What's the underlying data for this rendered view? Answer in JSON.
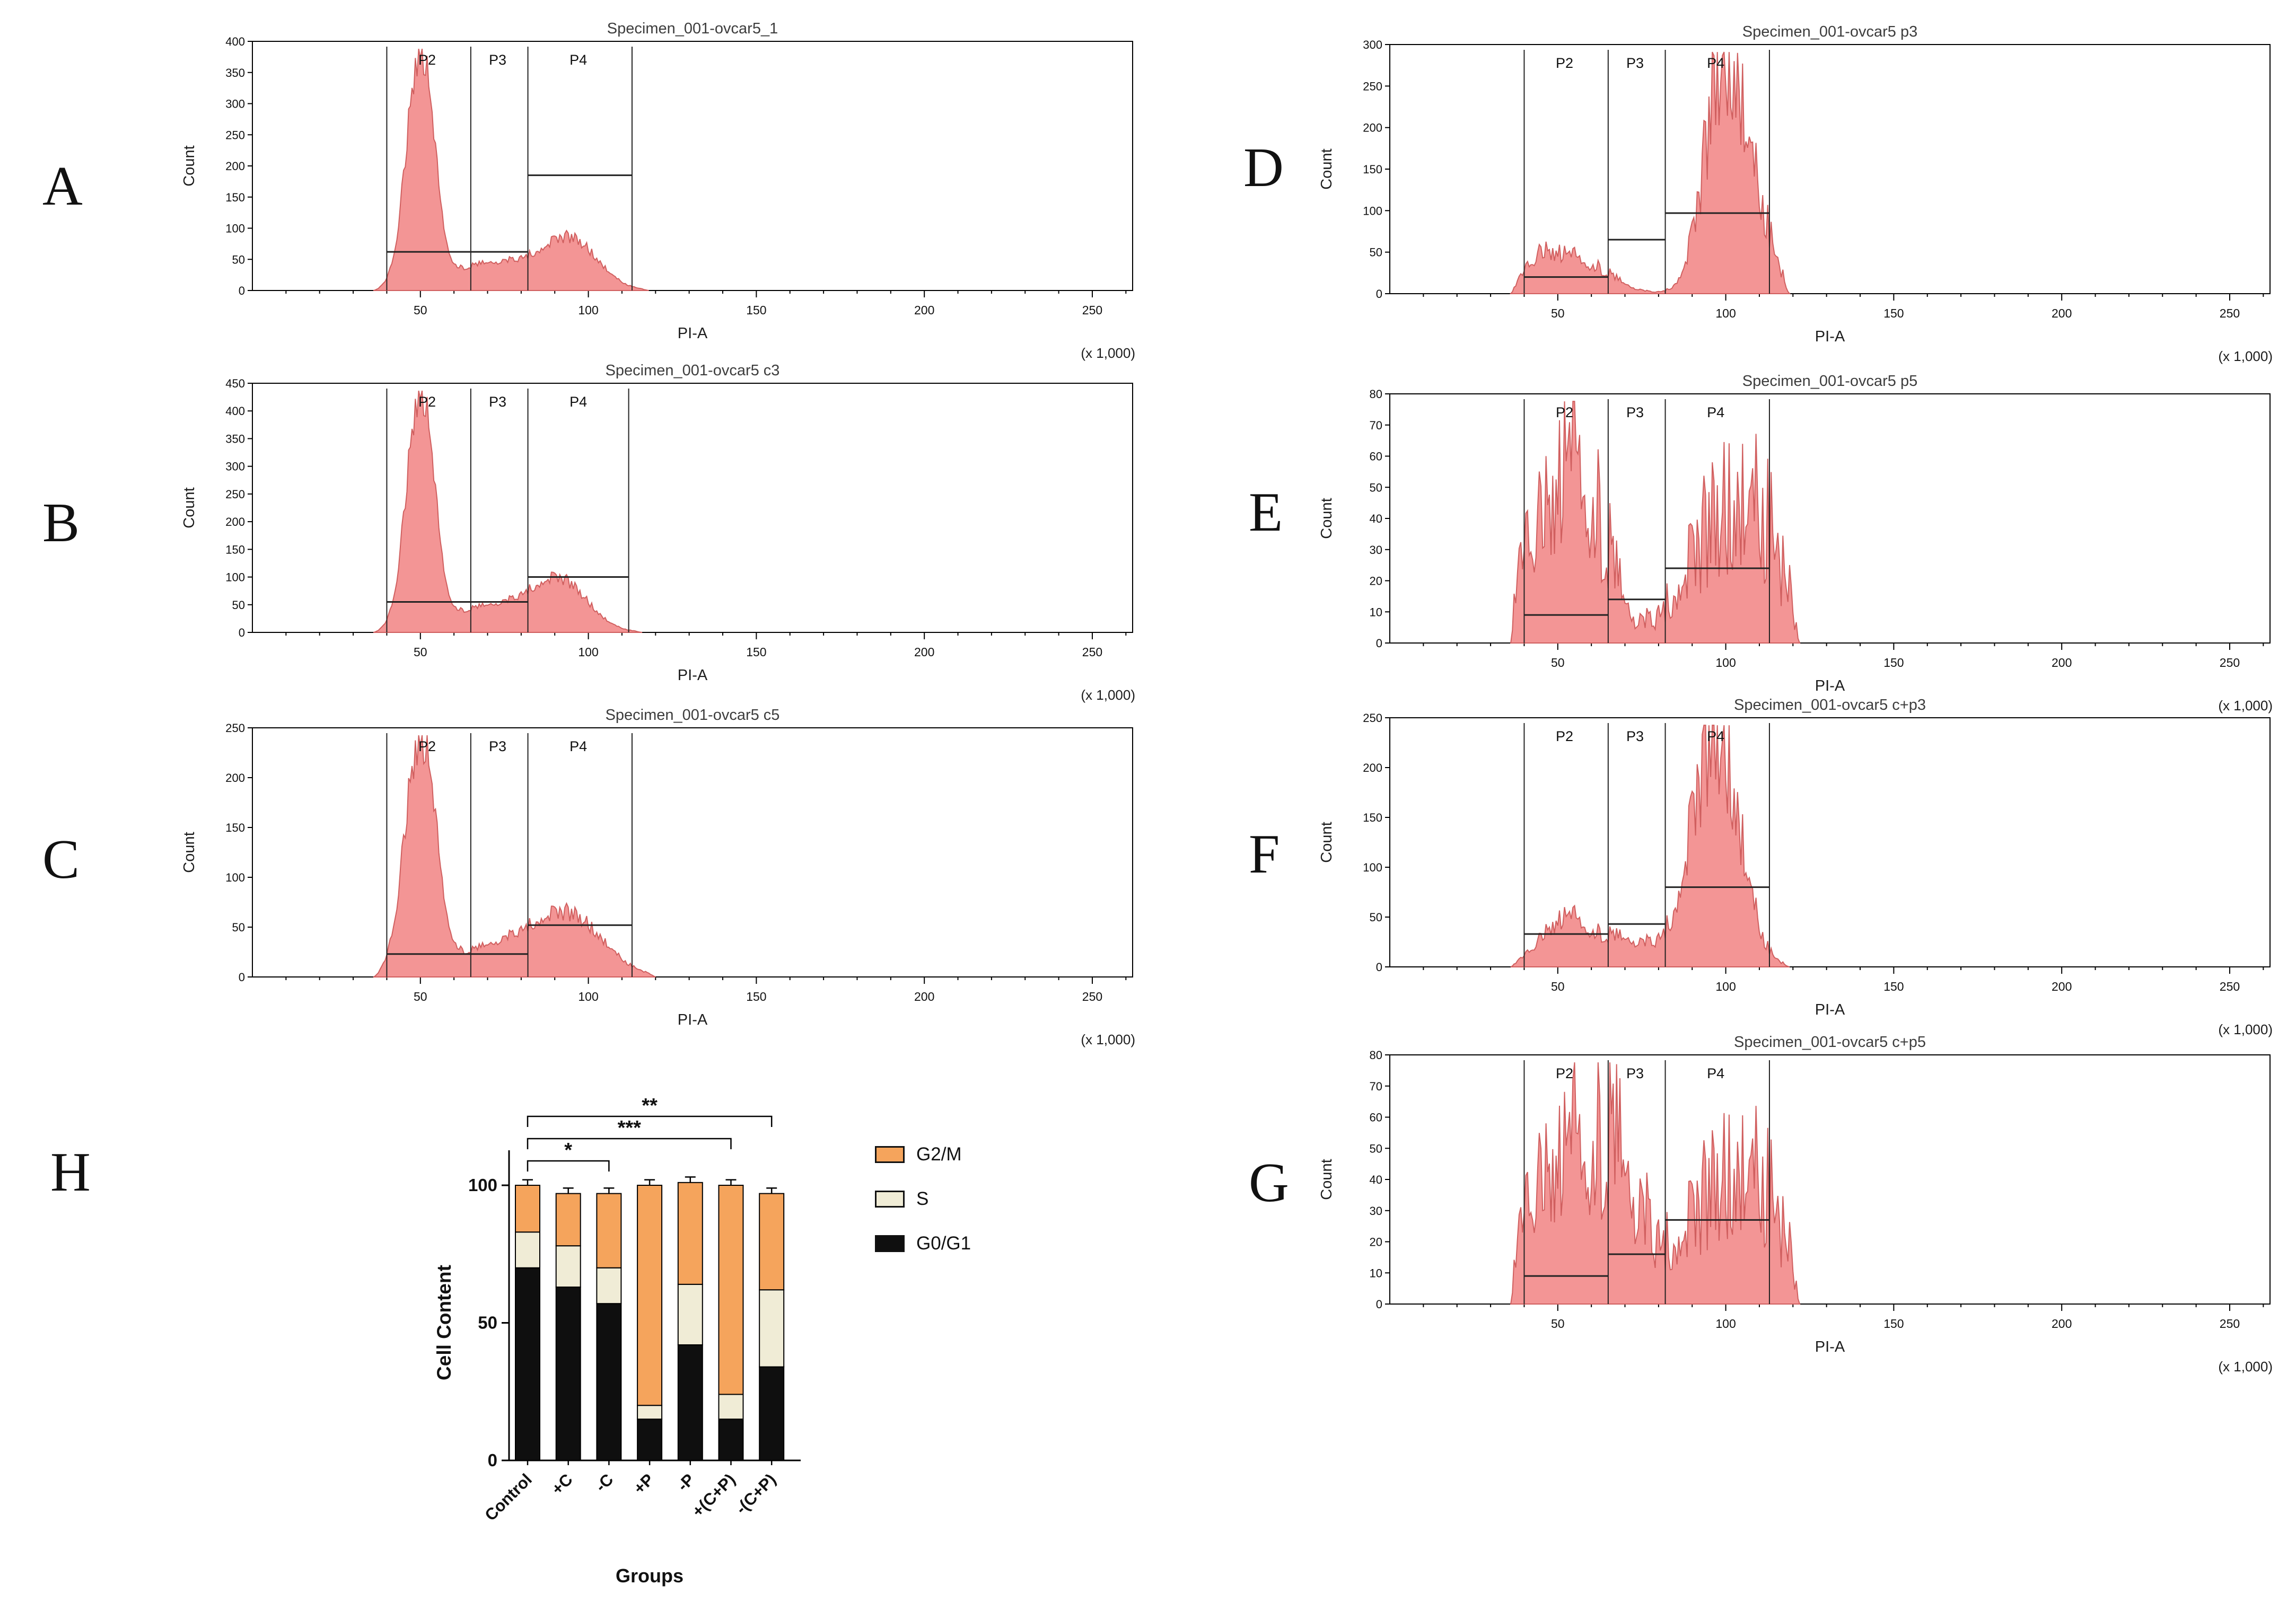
{
  "chart_data": [
    {
      "type": "histogram",
      "panel": "A",
      "title": "Specimen_001-ovcar5_1",
      "xlabel": "PI-A",
      "ylabel": "Count",
      "x_scale_note": "(x 1,000)",
      "xlim": [
        0,
        262
      ],
      "xticks": [
        50,
        100,
        150,
        200,
        250
      ],
      "ylim": [
        0,
        400
      ],
      "yticks": [
        0,
        50,
        100,
        150,
        200,
        250,
        300,
        350,
        400
      ],
      "fill": "#f28d8d",
      "stroke": "#d05f5f",
      "noise": 0.12,
      "range": [
        36,
        118
      ],
      "components": [
        {
          "center": 50,
          "sigma": 4,
          "amp": 380
        },
        {
          "center": 73,
          "sigma": 14,
          "amp": 46
        },
        {
          "center": 95,
          "sigma": 8,
          "amp": 72
        }
      ],
      "gates": {
        "verticals": [
          40,
          65,
          82,
          113
        ],
        "labels": [
          {
            "text": "P2",
            "x": 52
          },
          {
            "text": "P3",
            "x": 73
          },
          {
            "text": "P4",
            "x": 97
          }
        ],
        "hlines": [
          {
            "x1": 40,
            "x2": 82,
            "y": 62
          },
          {
            "x1": 82,
            "x2": 113,
            "y": 185
          }
        ]
      }
    },
    {
      "type": "histogram",
      "panel": "B",
      "title": "Specimen_001-ovcar5 c3",
      "xlabel": "PI-A",
      "ylabel": "Count",
      "x_scale_note": "(x 1,000)",
      "xlim": [
        0,
        262
      ],
      "xticks": [
        50,
        100,
        150,
        200,
        250
      ],
      "ylim": [
        0,
        450
      ],
      "yticks": [
        0,
        50,
        100,
        150,
        200,
        250,
        300,
        350,
        400,
        450
      ],
      "fill": "#f28d8d",
      "stroke": "#d05f5f",
      "noise": 0.12,
      "range": [
        36,
        116
      ],
      "components": [
        {
          "center": 50,
          "sigma": 4,
          "amp": 430
        },
        {
          "center": 73,
          "sigma": 14,
          "amp": 50
        },
        {
          "center": 92,
          "sigma": 8,
          "amp": 78
        }
      ],
      "gates": {
        "verticals": [
          40,
          65,
          82,
          112
        ],
        "labels": [
          {
            "text": "P2",
            "x": 52
          },
          {
            "text": "P3",
            "x": 73
          },
          {
            "text": "P4",
            "x": 97
          }
        ],
        "hlines": [
          {
            "x1": 40,
            "x2": 82,
            "y": 55
          },
          {
            "x1": 82,
            "x2": 112,
            "y": 100
          }
        ]
      }
    },
    {
      "type": "histogram",
      "panel": "C",
      "title": "Specimen_001-ovcar5 c5",
      "xlabel": "PI-A",
      "ylabel": "Count",
      "x_scale_note": "(x 1,000)",
      "xlim": [
        0,
        262
      ],
      "xticks": [
        50,
        100,
        150,
        200,
        250
      ],
      "ylim": [
        0,
        250
      ],
      "yticks": [
        0,
        50,
        100,
        150,
        200,
        250
      ],
      "fill": "#f28d8d",
      "stroke": "#d05f5f",
      "noise": 0.14,
      "range": [
        36,
        120
      ],
      "components": [
        {
          "center": 50,
          "sigma": 4.5,
          "amp": 238
        },
        {
          "center": 75,
          "sigma": 14,
          "amp": 33
        },
        {
          "center": 95,
          "sigma": 10,
          "amp": 52
        }
      ],
      "gates": {
        "verticals": [
          40,
          65,
          82,
          113
        ],
        "labels": [
          {
            "text": "P2",
            "x": 52
          },
          {
            "text": "P3",
            "x": 73
          },
          {
            "text": "P4",
            "x": 97
          }
        ],
        "hlines": [
          {
            "x1": 40,
            "x2": 82,
            "y": 23
          },
          {
            "x1": 82,
            "x2": 113,
            "y": 52
          }
        ]
      }
    },
    {
      "type": "histogram",
      "panel": "D",
      "title": "Specimen_001-ovcar5 p3",
      "xlabel": "PI-A",
      "ylabel": "Count",
      "x_scale_note": "(x 1,000)",
      "xlim": [
        0,
        262
      ],
      "xticks": [
        50,
        100,
        150,
        200,
        250
      ],
      "ylim": [
        0,
        300
      ],
      "yticks": [
        0,
        50,
        100,
        150,
        200,
        250,
        300
      ],
      "fill": "#f28d8d",
      "stroke": "#d05f5f",
      "noise": 0.3,
      "range": [
        36,
        119
      ],
      "components": [
        {
          "center": 45,
          "sigma": 5,
          "amp": 28
        },
        {
          "center": 56,
          "sigma": 9,
          "amp": 42
        },
        {
          "center": 100,
          "sigma": 6,
          "amp": 292
        },
        {
          "center": 111,
          "sigma": 4,
          "amp": 55
        }
      ],
      "gates": {
        "verticals": [
          40,
          65,
          82,
          113
        ],
        "labels": [
          {
            "text": "P2",
            "x": 52
          },
          {
            "text": "P3",
            "x": 73
          },
          {
            "text": "P4",
            "x": 97
          }
        ],
        "hlines": [
          {
            "x1": 40,
            "x2": 65,
            "y": 20
          },
          {
            "x1": 65,
            "x2": 82,
            "y": 65
          },
          {
            "x1": 82,
            "x2": 113,
            "y": 97
          }
        ]
      }
    },
    {
      "type": "histogram",
      "panel": "E",
      "title": "Specimen_001-ovcar5 p5",
      "xlabel": "PI-A",
      "ylabel": "Count",
      "x_scale_note": "(x 1,000)",
      "xlim": [
        0,
        262
      ],
      "xticks": [
        50,
        100,
        150,
        200,
        250
      ],
      "ylim": [
        0,
        80
      ],
      "yticks": [
        0,
        10,
        20,
        30,
        40,
        50,
        60,
        70,
        80
      ],
      "fill": "#f28d8d",
      "stroke": "#d05f5f",
      "noise": 0.55,
      "range": [
        36,
        122
      ],
      "components": [
        {
          "center": 48,
          "sigma": 13,
          "amp": 30
        },
        {
          "center": 57,
          "sigma": 7,
          "amp": 38
        },
        {
          "center": 100,
          "sigma": 11,
          "amp": 42
        },
        {
          "center": 112,
          "sigma": 5,
          "amp": 18
        }
      ],
      "gates": {
        "verticals": [
          40,
          65,
          82,
          113
        ],
        "labels": [
          {
            "text": "P2",
            "x": 52
          },
          {
            "text": "P3",
            "x": 73
          },
          {
            "text": "P4",
            "x": 97
          }
        ],
        "hlines": [
          {
            "x1": 40,
            "x2": 65,
            "y": 9
          },
          {
            "x1": 65,
            "x2": 82,
            "y": 14
          },
          {
            "x1": 82,
            "x2": 113,
            "y": 24
          }
        ]
      }
    },
    {
      "type": "histogram",
      "panel": "F",
      "title": "Specimen_001-ovcar5 c+p3",
      "xlabel": "PI-A",
      "ylabel": "Count",
      "x_scale_note": "(x 1,000)",
      "xlim": [
        0,
        262
      ],
      "xticks": [
        50,
        100,
        150,
        200,
        250
      ],
      "ylim": [
        0,
        250
      ],
      "yticks": [
        0,
        50,
        100,
        150,
        200,
        250
      ],
      "fill": "#f28d8d",
      "stroke": "#d05f5f",
      "noise": 0.3,
      "range": [
        36,
        119
      ],
      "components": [
        {
          "center": 52,
          "sigma": 7,
          "amp": 45
        },
        {
          "center": 70,
          "sigma": 10,
          "amp": 28
        },
        {
          "center": 97,
          "sigma": 7,
          "amp": 238
        }
      ],
      "gates": {
        "verticals": [
          40,
          65,
          82,
          113
        ],
        "labels": [
          {
            "text": "P2",
            "x": 52
          },
          {
            "text": "P3",
            "x": 73
          },
          {
            "text": "P4",
            "x": 97
          }
        ],
        "hlines": [
          {
            "x1": 40,
            "x2": 65,
            "y": 33
          },
          {
            "x1": 65,
            "x2": 82,
            "y": 43
          },
          {
            "x1": 82,
            "x2": 113,
            "y": 80
          }
        ]
      }
    },
    {
      "type": "histogram",
      "panel": "G",
      "title": "Specimen_001-ovcar5 c+p5",
      "xlabel": "PI-A",
      "ylabel": "Count",
      "x_scale_note": "(x 1,000)",
      "xlim": [
        0,
        262
      ],
      "xticks": [
        50,
        100,
        150,
        200,
        250
      ],
      "ylim": [
        0,
        80
      ],
      "yticks": [
        0,
        10,
        20,
        30,
        40,
        50,
        60,
        70,
        80
      ],
      "fill": "#f28d8d",
      "stroke": "#d05f5f",
      "noise": 0.55,
      "range": [
        36,
        122
      ],
      "components": [
        {
          "center": 48,
          "sigma": 10,
          "amp": 35
        },
        {
          "center": 62,
          "sigma": 8,
          "amp": 40
        },
        {
          "center": 72,
          "sigma": 6,
          "amp": 20
        },
        {
          "center": 100,
          "sigma": 12,
          "amp": 40
        },
        {
          "center": 112,
          "sigma": 5,
          "amp": 15
        }
      ],
      "gates": {
        "verticals": [
          40,
          65,
          82,
          113
        ],
        "labels": [
          {
            "text": "P2",
            "x": 52
          },
          {
            "text": "P3",
            "x": 73
          },
          {
            "text": "P4",
            "x": 97
          }
        ],
        "hlines": [
          {
            "x1": 40,
            "x2": 65,
            "y": 9
          },
          {
            "x1": 65,
            "x2": 82,
            "y": 16
          },
          {
            "x1": 82,
            "x2": 113,
            "y": 27
          }
        ]
      }
    },
    {
      "type": "stacked-bar",
      "panel": "H",
      "categories": [
        "Control",
        "+C",
        "-C",
        "+P",
        "-P",
        "+(C+P)",
        "-(C+P)"
      ],
      "series": [
        {
          "name": "G0/G1",
          "color": "#0f0f0f",
          "values": [
            70,
            63,
            57,
            15,
            42,
            15,
            34
          ]
        },
        {
          "name": "S",
          "color": "#f0ecd6",
          "values": [
            13,
            15,
            13,
            5,
            22,
            9,
            28
          ]
        },
        {
          "name": "G2/M",
          "color": "#f5a45c",
          "values": [
            17,
            19,
            27,
            80,
            37,
            76,
            35
          ]
        }
      ],
      "error": 2,
      "ylabel": "Cell Content",
      "xlabel": "Groups",
      "ylim": [
        0,
        100
      ],
      "yticks": [
        0,
        50,
        100
      ],
      "legend_items": [
        {
          "label": "G2/M",
          "color": "#f5a45c"
        },
        {
          "label": "S",
          "color": "#f0ecd6"
        },
        {
          "label": "G0/G1",
          "color": "#0f0f0f"
        }
      ],
      "significance": [
        {
          "label": "*",
          "from": 0,
          "to": 2
        },
        {
          "label": "***",
          "from": 0,
          "to": 5
        },
        {
          "label": "**",
          "from": 0,
          "to": 6
        }
      ]
    }
  ]
}
